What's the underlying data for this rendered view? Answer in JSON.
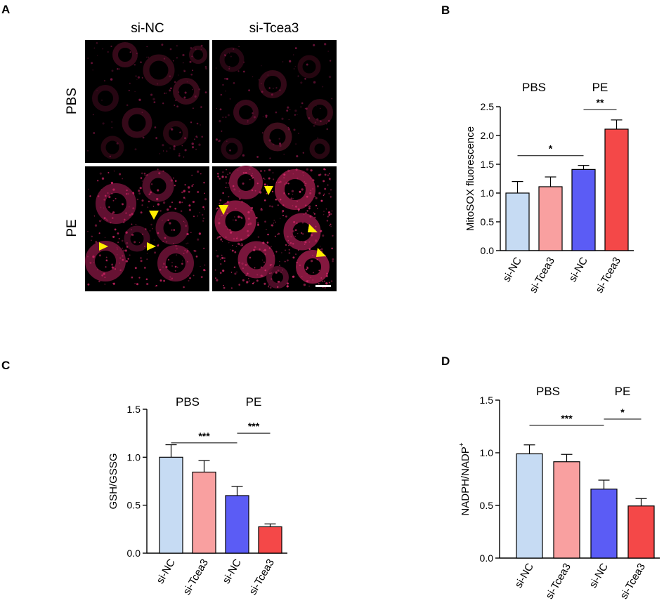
{
  "panel_a": {
    "letter": "A",
    "columns": [
      "si-NC",
      "si-Tcea3"
    ],
    "rows": [
      "PBS",
      "PE"
    ]
  },
  "chart_data": [
    {
      "panel": "B",
      "type": "bar",
      "categories": [
        "si-NC",
        "si-Tcea3",
        "si-NC",
        "si-Tcea3"
      ],
      "groups": [
        "PBS",
        "PE"
      ],
      "values": [
        1.0,
        1.11,
        1.41,
        2.11
      ],
      "errors": [
        0.2,
        0.17,
        0.07,
        0.16
      ],
      "colors": [
        "#c6dbf3",
        "#f9a0a0",
        "#5b5cf5",
        "#f44848"
      ],
      "xlabel": "",
      "ylabel": "MitoSOX fluorescence",
      "ylim": [
        0,
        2.5
      ],
      "yticks": [
        "0.0",
        "0.5",
        "1.0",
        "1.5",
        "2.0",
        "2.5"
      ],
      "significance": [
        {
          "label": "*",
          "from": 0,
          "to": 2,
          "y": 1.65
        },
        {
          "label": "**",
          "from": 2,
          "to": 3,
          "y": 2.45
        }
      ]
    },
    {
      "panel": "C",
      "type": "bar",
      "categories": [
        "si-NC",
        "si-Tcea3",
        "si-NC",
        "si-Tcea3"
      ],
      "groups": [
        "PBS",
        "PE"
      ],
      "values": [
        1.0,
        0.845,
        0.6,
        0.275
      ],
      "errors": [
        0.13,
        0.12,
        0.095,
        0.03
      ],
      "colors": [
        "#c6dbf3",
        "#f9a0a0",
        "#5b5cf5",
        "#f44848"
      ],
      "xlabel": "",
      "ylabel": "GSH/GSSG",
      "ylim": [
        0,
        1.5
      ],
      "yticks": [
        "0.0",
        "0.5",
        "1.0",
        "1.5"
      ],
      "significance": [
        {
          "label": "***",
          "from": 0,
          "to": 2,
          "y": 1.15
        },
        {
          "label": "***",
          "from": 2,
          "to": 3,
          "y": 1.25
        }
      ]
    },
    {
      "panel": "D",
      "type": "bar",
      "categories": [
        "si-NC",
        "si-Tcea3",
        "si-NC",
        "si-Tcea3"
      ],
      "groups": [
        "PBS",
        "PE"
      ],
      "values": [
        0.99,
        0.915,
        0.655,
        0.495
      ],
      "errors": [
        0.085,
        0.07,
        0.085,
        0.07
      ],
      "colors": [
        "#c6dbf3",
        "#f9a0a0",
        "#5b5cf5",
        "#f44848"
      ],
      "xlabel": "",
      "ylabel": "NADPH/NADP",
      "ylabel_sup": "+",
      "ylim": [
        0,
        1.5
      ],
      "yticks": [
        "0.0",
        "0.5",
        "1.0",
        "1.5"
      ],
      "significance": [
        {
          "label": "***",
          "from": 0,
          "to": 2,
          "y": 1.26
        },
        {
          "label": "*",
          "from": 2,
          "to": 3,
          "y": 1.32
        }
      ]
    }
  ]
}
